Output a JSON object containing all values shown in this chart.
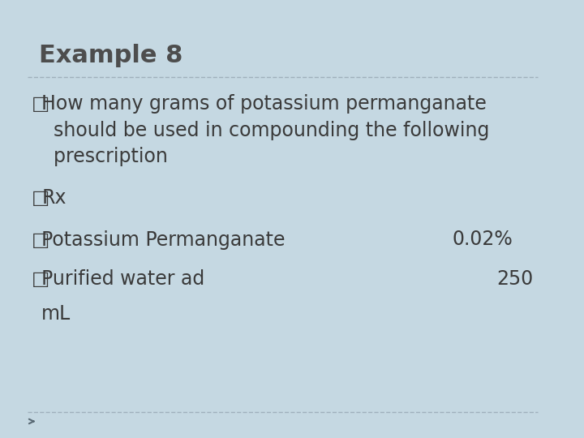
{
  "title": "Example 8",
  "title_fontsize": 22,
  "title_color": "#4d4d4d",
  "title_bold": true,
  "bg_color": "#c5d8e2",
  "text_color": "#3a3a3a",
  "bullet_char": "□",
  "fs": 17,
  "arrow_color": "#5a6a75",
  "dashed_line_color": "#a0b0bc",
  "line1_text": "How many grams of potassium permanganate\n  should be used in compounding the following\n  prescription",
  "line2_text": "Rx",
  "line3_text": "Potassium Permanganate",
  "line3_value": "0.02%",
  "line4_text": "Purified water ad",
  "line4_value": "250",
  "line5_text": "mL"
}
